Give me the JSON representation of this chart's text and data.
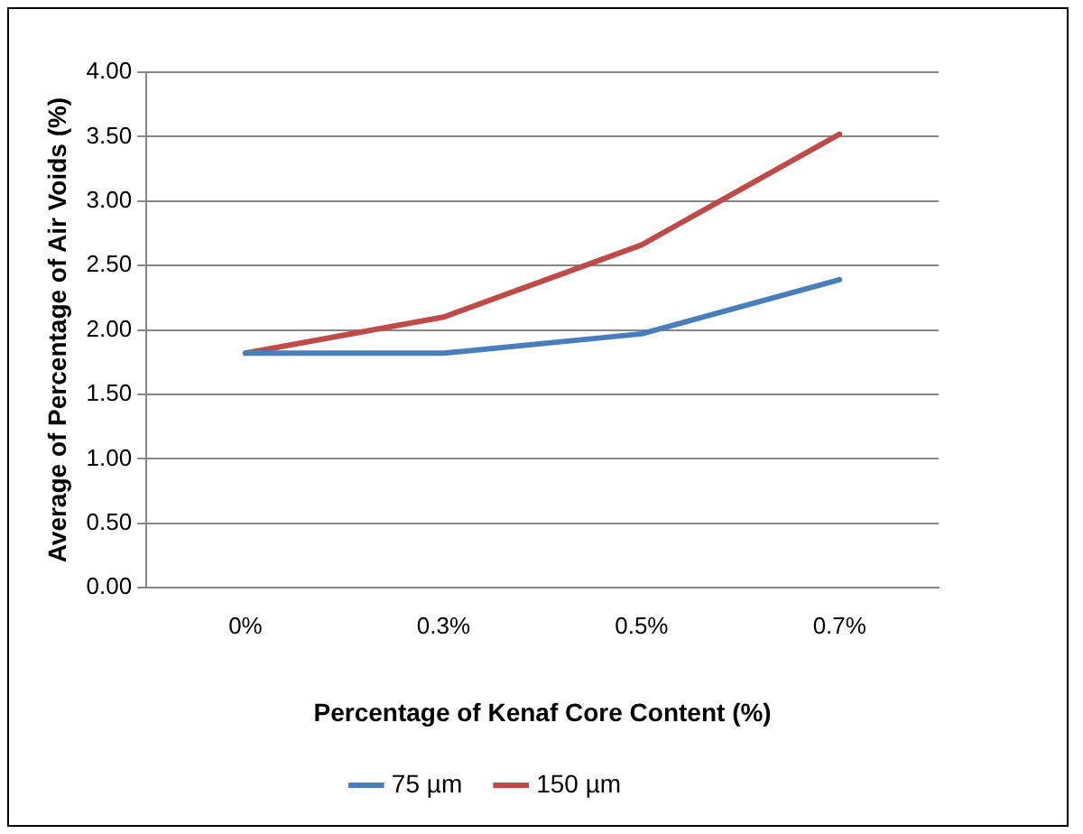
{
  "chart_data": {
    "type": "line",
    "xlabel": "Percentage of Kenaf Core Content (%)",
    "ylabel": "Average of Percentage of Air Voids (%)",
    "categories": [
      "0%",
      "0.3%",
      "0.5%",
      "0.7%"
    ],
    "series": [
      {
        "name": "75 µm",
        "color": "#4a7ebb",
        "values": [
          1.82,
          1.82,
          1.97,
          2.39
        ]
      },
      {
        "name": "150 µm",
        "color": "#be4b48",
        "values": [
          1.82,
          2.1,
          2.66,
          3.52
        ]
      }
    ],
    "ylim": [
      0,
      4
    ],
    "yticks": [
      {
        "value": 0,
        "label": "0.00"
      },
      {
        "value": 0.5,
        "label": "0.50"
      },
      {
        "value": 1,
        "label": "1.00"
      },
      {
        "value": 1.5,
        "label": "1.50"
      },
      {
        "value": 2,
        "label": "2.00"
      },
      {
        "value": 2.5,
        "label": "2.50"
      },
      {
        "value": 3,
        "label": "3.00"
      },
      {
        "value": 3.5,
        "label": "3.50"
      },
      {
        "value": 4,
        "label": "4.00"
      }
    ],
    "grid": "y",
    "legend": "bottom",
    "marker": "none",
    "line_style": "solid"
  }
}
